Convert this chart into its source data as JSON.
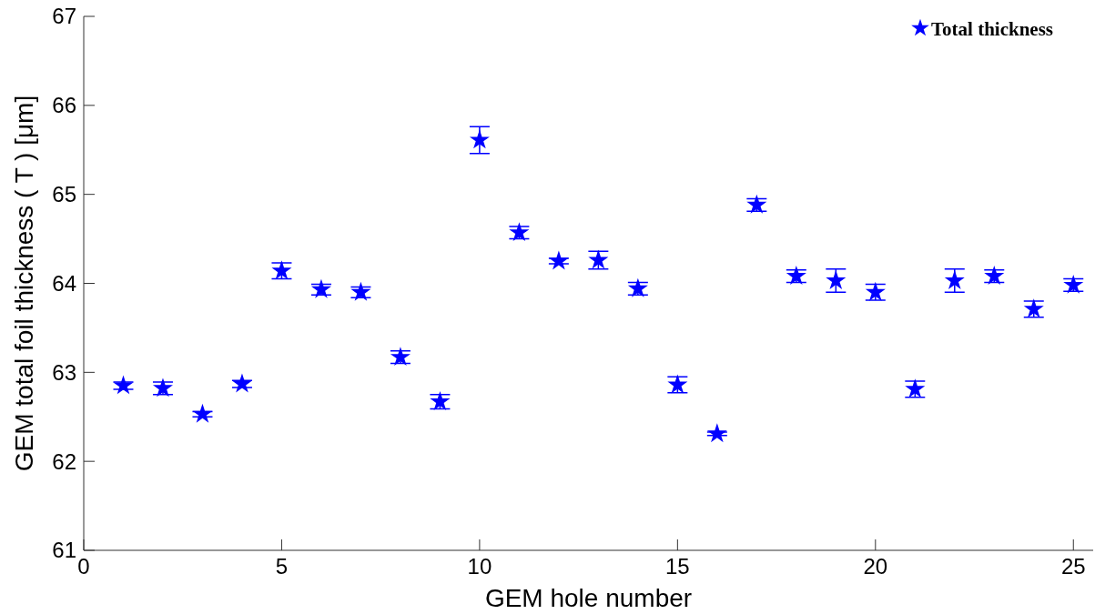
{
  "chart_data": {
    "type": "scatter",
    "xlabel": "GEM hole number",
    "ylabel": "GEM total foil thickness ( T ) [μm]",
    "x": [
      1,
      2,
      3,
      4,
      5,
      6,
      7,
      8,
      9,
      10,
      11,
      12,
      13,
      14,
      15,
      16,
      17,
      18,
      19,
      20,
      21,
      22,
      23,
      24,
      25
    ],
    "series": [
      {
        "name": "Total thickness",
        "color": "#0000ff",
        "values": [
          62.85,
          62.82,
          62.53,
          62.87,
          64.14,
          63.93,
          63.9,
          63.17,
          62.67,
          65.61,
          64.57,
          64.25,
          64.26,
          63.94,
          62.86,
          62.31,
          64.88,
          64.08,
          64.03,
          63.9,
          62.81,
          64.03,
          64.08,
          63.71,
          63.98
        ],
        "errors": [
          0.04,
          0.07,
          0.03,
          0.04,
          0.09,
          0.06,
          0.06,
          0.07,
          0.08,
          0.15,
          0.07,
          0.03,
          0.1,
          0.07,
          0.09,
          0.02,
          0.07,
          0.07,
          0.13,
          0.09,
          0.09,
          0.13,
          0.07,
          0.09,
          0.07
        ]
      }
    ],
    "xlim": [
      0,
      25.5
    ],
    "xticks": [
      0,
      5,
      10,
      15,
      20,
      25
    ],
    "ylim": [
      61,
      67
    ],
    "yticks": [
      61,
      62,
      63,
      64,
      65,
      66,
      67
    ],
    "marker": "star",
    "legend": "top right",
    "grid": false
  }
}
